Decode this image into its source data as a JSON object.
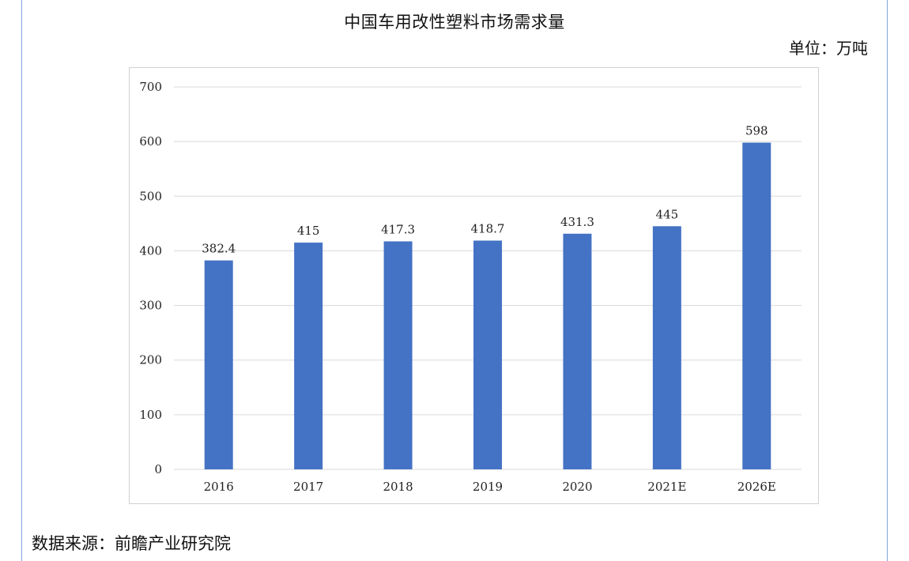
{
  "header": {
    "title": "中国车用改性塑料市场需求量",
    "unit": "单位：万吨"
  },
  "footer": {
    "source": "数据来源：前瞻产业研究院"
  },
  "colors": {
    "bar": "#4472c4",
    "grid": "#d9d9d9",
    "frame": "#7da3d9"
  },
  "chart_data": {
    "type": "bar",
    "categories": [
      "2016",
      "2017",
      "2018",
      "2019",
      "2020",
      "2021E",
      "2026E"
    ],
    "values": [
      382.4,
      415,
      417.3,
      418.7,
      431.3,
      445,
      598
    ],
    "value_labels": [
      "382.4",
      "415",
      "417.3",
      "418.7",
      "431.3",
      "445",
      "598"
    ],
    "ylim": [
      0,
      700
    ],
    "yticks": [
      0,
      100,
      200,
      300,
      400,
      500,
      600,
      700
    ],
    "grid": true,
    "legend": "none"
  }
}
